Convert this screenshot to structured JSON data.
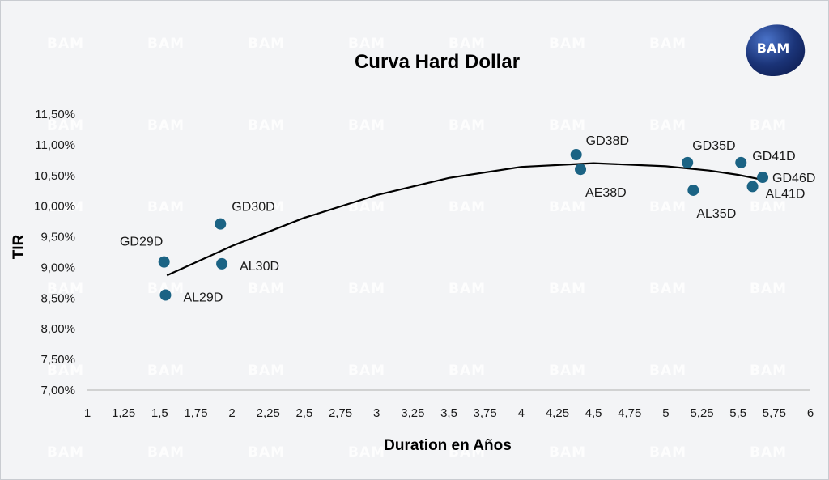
{
  "logo": {
    "text": "BAM"
  },
  "watermark": "BAM",
  "colors": {
    "marker": "#1b6384",
    "trend": "#000000",
    "background": "#f3f4f6",
    "logo_dark": "#1b2f6e",
    "logo_light": "#3a5fb5"
  },
  "chart_data": {
    "type": "scatter",
    "title": "Curva Hard Dollar",
    "xlabel": "Duration en Años",
    "ylabel": "TIR",
    "xlim": [
      1,
      6
    ],
    "ylim": [
      7.0,
      11.5
    ],
    "x_ticks": [
      "1",
      "1,25",
      "1,5",
      "1,75",
      "2",
      "2,25",
      "2,5",
      "2,75",
      "3",
      "3,25",
      "3,5",
      "3,75",
      "4",
      "4,25",
      "4,5",
      "4,75",
      "5",
      "5,25",
      "5,5",
      "5,75",
      "6"
    ],
    "y_ticks": [
      "7,00%",
      "7,50%",
      "8,00%",
      "8,50%",
      "9,00%",
      "9,50%",
      "10,00%",
      "10,50%",
      "11,00%",
      "11,50%"
    ],
    "grid": false,
    "legend": "none",
    "points": [
      {
        "label": "GD29D",
        "x": 1.53,
        "y": 9.09
      },
      {
        "label": "AL29D",
        "x": 1.54,
        "y": 8.55
      },
      {
        "label": "GD30D",
        "x": 1.92,
        "y": 9.71
      },
      {
        "label": "AL30D",
        "x": 1.93,
        "y": 9.06
      },
      {
        "label": "GD38D",
        "x": 4.38,
        "y": 10.84
      },
      {
        "label": "AE38D",
        "x": 4.41,
        "y": 10.6
      },
      {
        "label": "GD35D",
        "x": 5.15,
        "y": 10.71
      },
      {
        "label": "AL35D",
        "x": 5.19,
        "y": 10.26
      },
      {
        "label": "GD41D",
        "x": 5.52,
        "y": 10.71
      },
      {
        "label": "AL41D",
        "x": 5.6,
        "y": 10.32
      },
      {
        "label": "GD46D",
        "x": 5.67,
        "y": 10.47
      }
    ],
    "trendline": {
      "type": "polynomial",
      "x": [
        1.55,
        2.0,
        2.5,
        3.0,
        3.5,
        4.0,
        4.5,
        5.0,
        5.3,
        5.5,
        5.67
      ],
      "y": [
        8.87,
        9.35,
        9.81,
        10.18,
        10.46,
        10.64,
        10.7,
        10.65,
        10.58,
        10.51,
        10.43
      ]
    }
  }
}
